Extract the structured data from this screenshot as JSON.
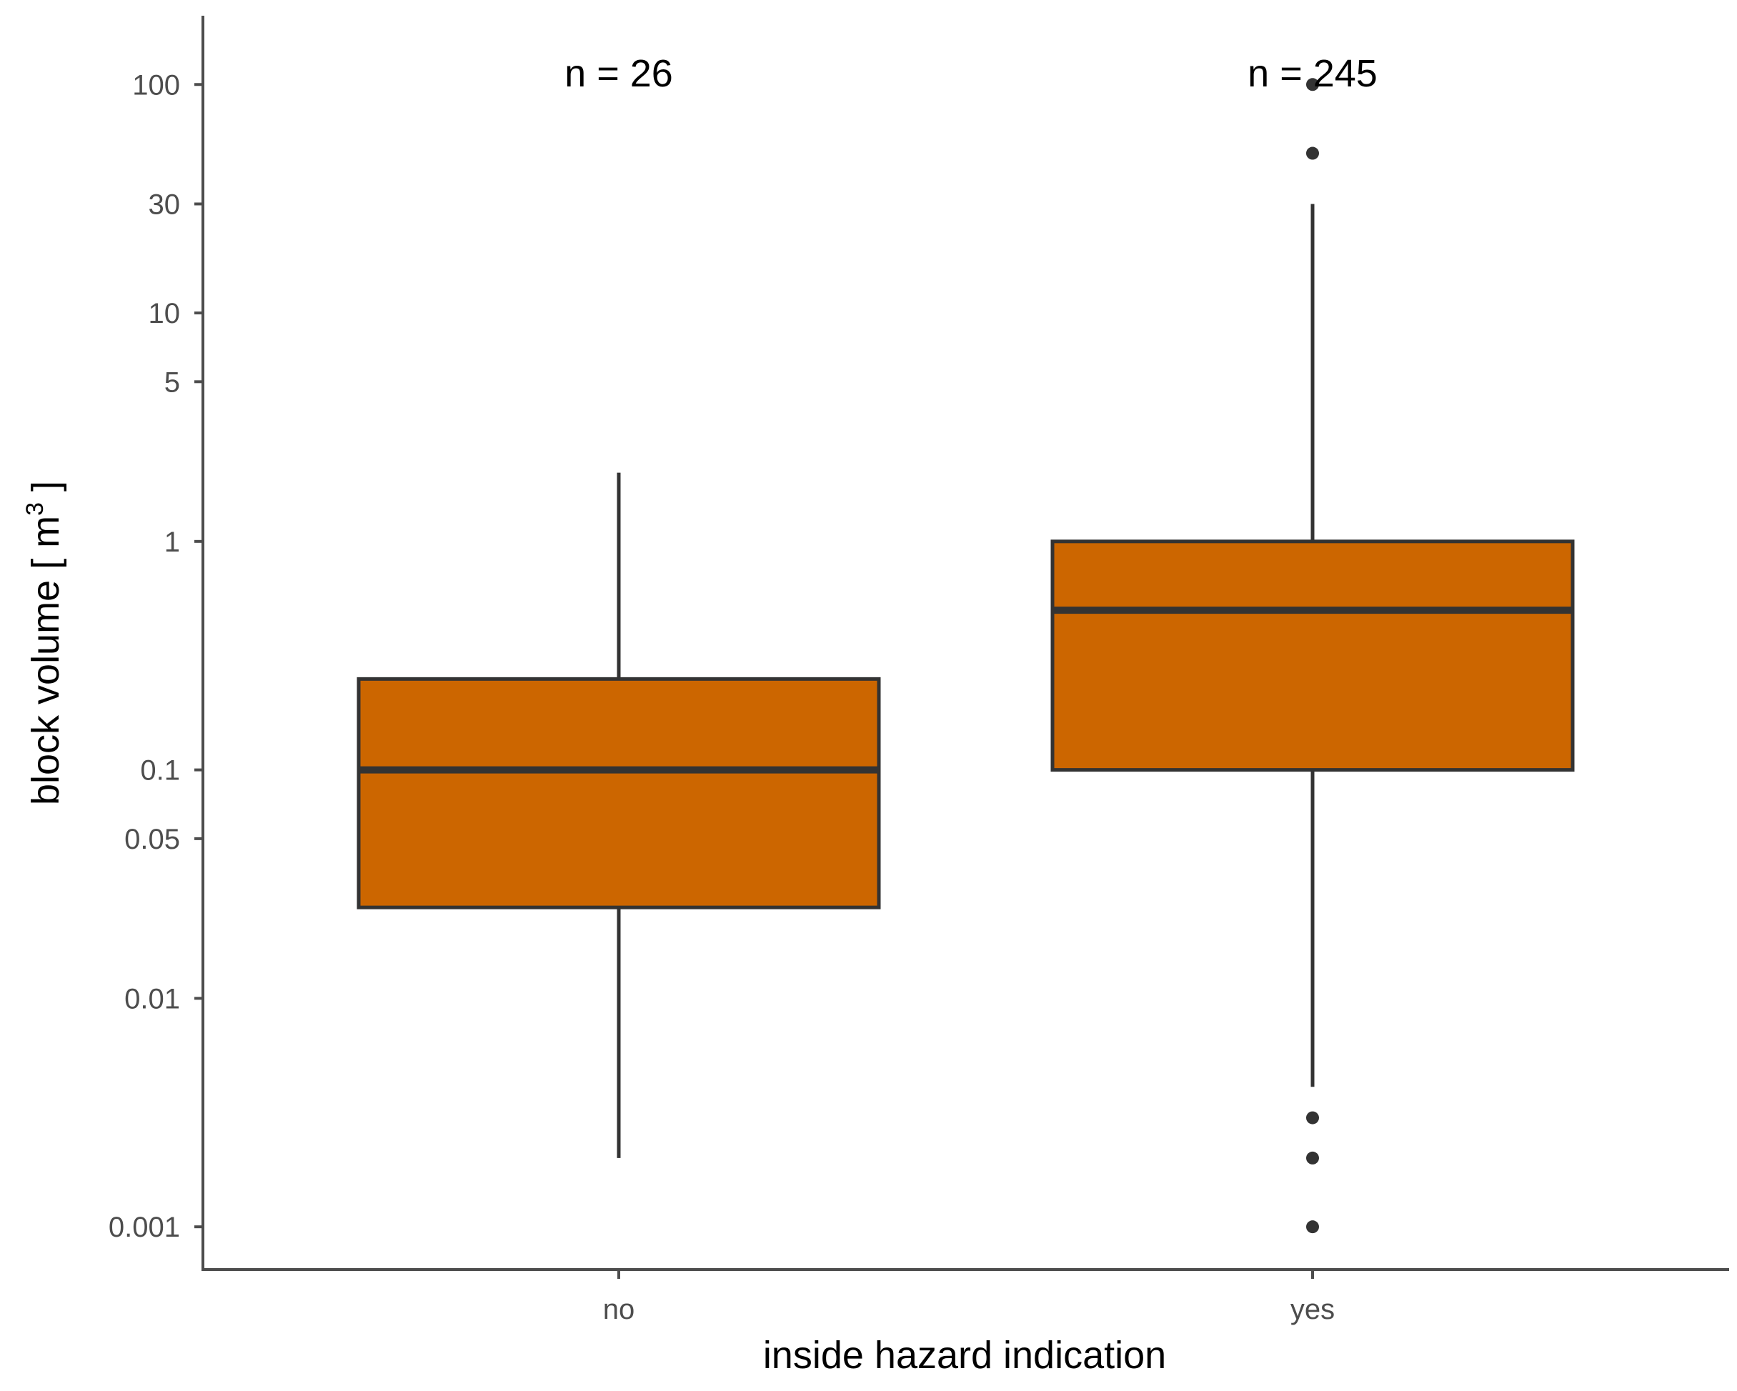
{
  "chart_data": {
    "type": "boxplot",
    "title": "",
    "xlabel": "inside hazard indication",
    "ylabel": {
      "text_before": "block volume [ m",
      "superscript": "3",
      "text_after": " ]"
    },
    "y_scale": "log10",
    "ylim": [
      0.00065,
      200
    ],
    "y_ticks": [
      {
        "value": 0.001,
        "label": "0.001"
      },
      {
        "value": 0.01,
        "label": "0.01"
      },
      {
        "value": 0.05,
        "label": "0.05"
      },
      {
        "value": 0.1,
        "label": "0.1"
      },
      {
        "value": 1,
        "label": "1"
      },
      {
        "value": 5,
        "label": "5"
      },
      {
        "value": 10,
        "label": "10"
      },
      {
        "value": 30,
        "label": "30"
      },
      {
        "value": 100,
        "label": "100"
      }
    ],
    "grid": false,
    "fill_color": "#cc6600",
    "line_color": "#333333",
    "categories": [
      "no",
      "yes"
    ],
    "boxes": [
      {
        "category": "no",
        "n_label": "n = 26",
        "whisker_low": 0.002,
        "q1": 0.025,
        "median": 0.1,
        "q3": 0.25,
        "whisker_high": 2,
        "outliers": []
      },
      {
        "category": "yes",
        "n_label": "n = 245",
        "whisker_low": 0.0041,
        "q1": 0.1,
        "median": 0.5,
        "q3": 1,
        "whisker_high": 30,
        "outliers": [
          100,
          50,
          0.003,
          0.002,
          0.001
        ]
      }
    ]
  }
}
